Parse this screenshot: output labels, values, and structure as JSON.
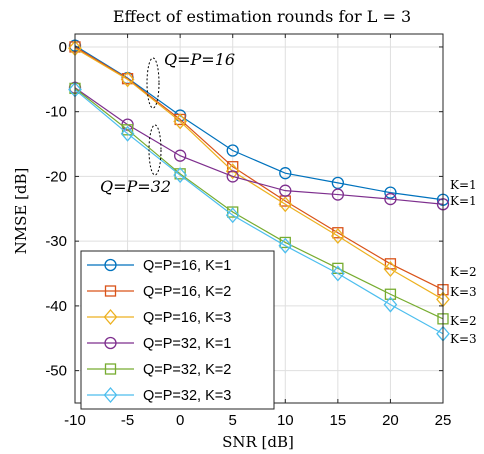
{
  "chart_data": {
    "type": "line",
    "title": "Effect of estimation rounds for L = 3",
    "xlabel": "SNR [dB]",
    "ylabel": "NMSE [dB]",
    "xlim": [
      -10,
      25
    ],
    "ylim": [
      -55,
      2
    ],
    "xticks": [
      -10,
      -5,
      0,
      5,
      10,
      15,
      20,
      25
    ],
    "yticks": [
      0,
      -10,
      -20,
      -30,
      -40,
      -50
    ],
    "xtick_labels": [
      "-10",
      "-5",
      "0",
      "5",
      "10",
      "15",
      "20",
      "25"
    ],
    "ytick_labels": [
      "0",
      "-10",
      "-20",
      "-30",
      "-40",
      "-50"
    ],
    "grid": true,
    "legend_position": "lower-left",
    "x": [
      -10,
      -5,
      0,
      5,
      10,
      15,
      20,
      25
    ],
    "series": [
      {
        "name": "Q=P=16, K=1",
        "color": "#0072BD",
        "marker": "circle",
        "values": [
          0.2,
          -4.8,
          -10.6,
          -16.0,
          -19.5,
          -21.0,
          -22.5,
          -23.6
        ]
      },
      {
        "name": "Q=P=16, K=2",
        "color": "#D95319",
        "marker": "square",
        "values": [
          0.0,
          -4.9,
          -11.2,
          -18.5,
          -23.8,
          -28.7,
          -33.5,
          -37.5
        ]
      },
      {
        "name": "Q=P=16, K=3",
        "color": "#EDB120",
        "marker": "diamond",
        "values": [
          -0.2,
          -5.0,
          -11.5,
          -19.2,
          -24.3,
          -29.2,
          -34.3,
          -39.0
        ]
      },
      {
        "name": "Q=P=32, K=1",
        "color": "#7E2F8E",
        "marker": "circle",
        "values": [
          -6.3,
          -12.0,
          -16.8,
          -20.0,
          -22.2,
          -22.8,
          -23.5,
          -24.3
        ]
      },
      {
        "name": "Q=P=32, K=2",
        "color": "#77AC30",
        "marker": "square",
        "values": [
          -6.4,
          -12.8,
          -19.6,
          -25.5,
          -30.2,
          -34.2,
          -38.2,
          -42.0
        ]
      },
      {
        "name": "Q=P=32, K=3",
        "color": "#4DBEEE",
        "marker": "diamond",
        "values": [
          -6.6,
          -13.4,
          -19.8,
          -26.0,
          -30.7,
          -35.0,
          -39.8,
          -44.3
        ]
      }
    ],
    "annotations": [
      {
        "text": "Q=P=16"
      },
      {
        "text": "Q=P=32"
      }
    ],
    "side_labels": [
      {
        "text": "K=1"
      },
      {
        "text": "K=1"
      },
      {
        "text": "K=2"
      },
      {
        "text": "K=3"
      },
      {
        "text": "K=2"
      },
      {
        "text": "K=3"
      }
    ]
  }
}
